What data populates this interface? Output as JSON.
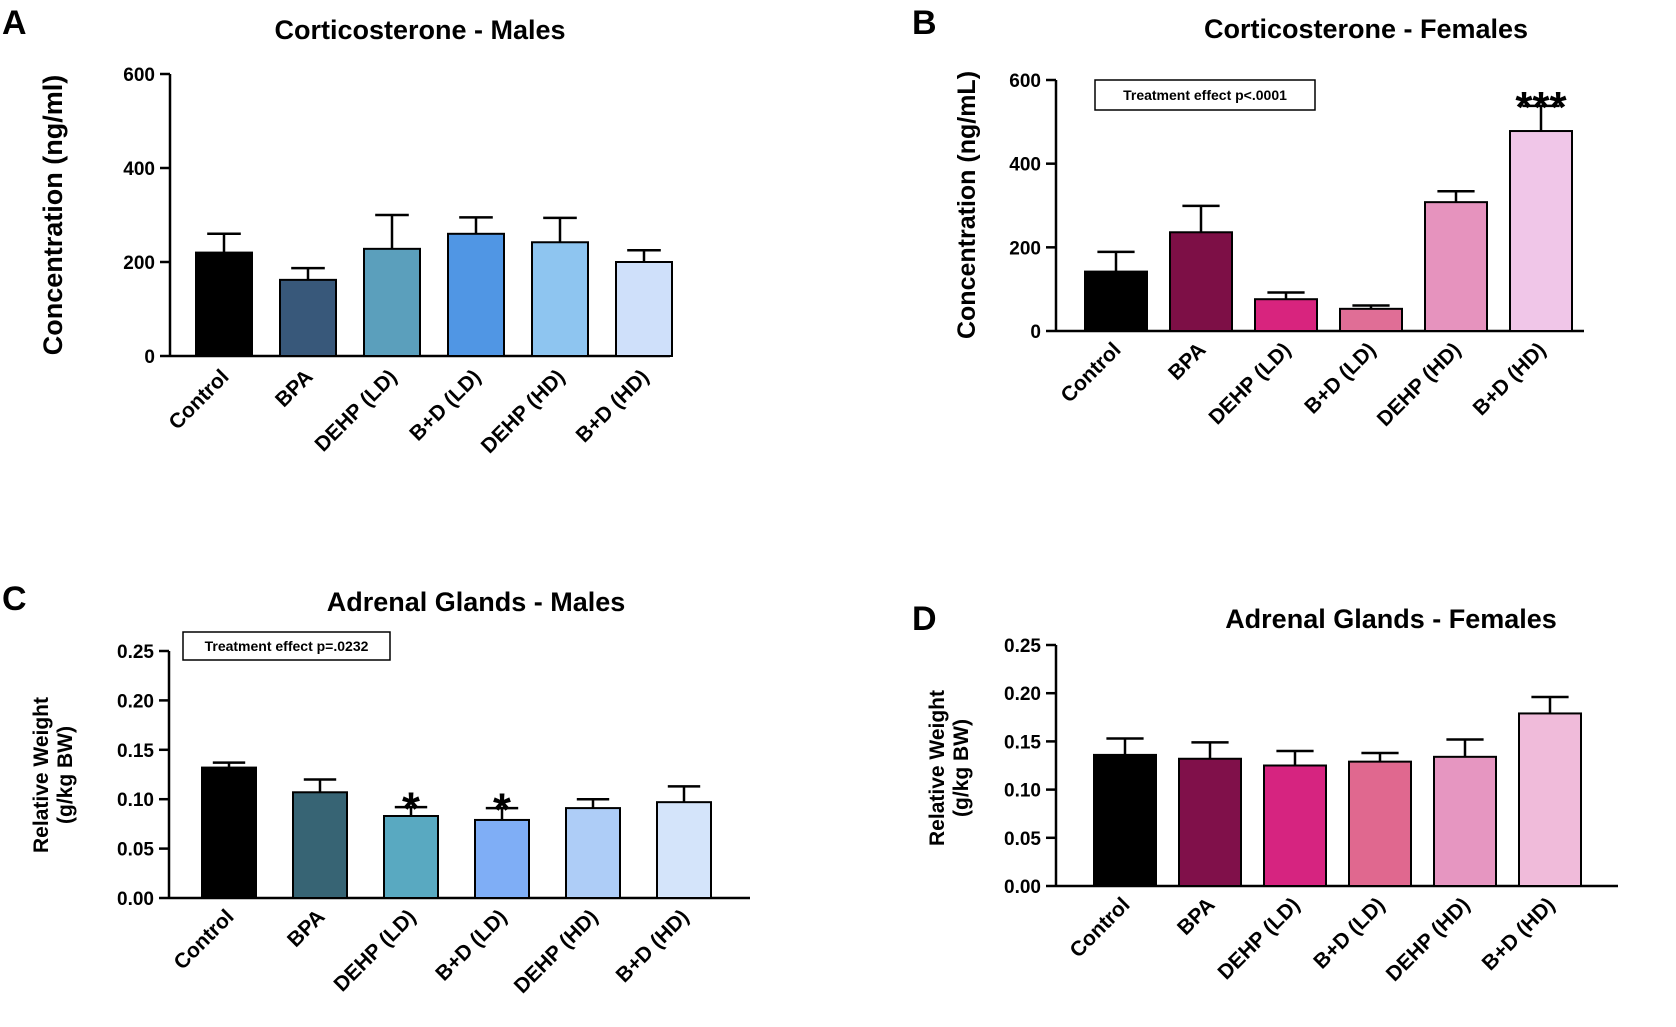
{
  "chart_data": [
    {
      "id": "A",
      "type": "bar",
      "panel_label": "A",
      "title": "Corticosterone - Males",
      "ylabel": [
        "Concentration (ng/ml)"
      ],
      "categories": [
        "Control",
        "BPA",
        "DEHP (LD)",
        "B+D (LD)",
        "DEHP (HD)",
        "B+D (HD)"
      ],
      "values": [
        220,
        162,
        228,
        260,
        242,
        200
      ],
      "errors": [
        40,
        25,
        72,
        35,
        52,
        25
      ],
      "colors": [
        "#000000",
        "#38587a",
        "#5b9fbc",
        "#5096e4",
        "#8ec5f0",
        "#cfe0fa"
      ],
      "ylim": [
        0,
        600
      ],
      "yticks": [
        "0",
        "200",
        "400",
        "600"
      ],
      "annotation": "",
      "significance": [
        "",
        "",
        "",
        "",
        "",
        ""
      ]
    },
    {
      "id": "B",
      "type": "bar",
      "panel_label": "B",
      "title": "Corticosterone - Females",
      "ylabel": [
        "Concentration (ng/mL)"
      ],
      "categories": [
        "Control",
        "BPA",
        "DEHP (LD)",
        "B+D (LD)",
        "DEHP (HD)",
        "B+D (HD)"
      ],
      "values": [
        142,
        236,
        76,
        53,
        308,
        478
      ],
      "errors": [
        47,
        63,
        16,
        8,
        26,
        60
      ],
      "colors": [
        "#000000",
        "#7d0f46",
        "#d8247e",
        "#e06e96",
        "#e693be",
        "#f0c6e8"
      ],
      "ylim": [
        0,
        600
      ],
      "yticks": [
        "0",
        "200",
        "400",
        "600"
      ],
      "annotation": "Treatment effect p<.0001",
      "significance": [
        "",
        "",
        "",
        "",
        "",
        "***"
      ]
    },
    {
      "id": "C",
      "type": "bar",
      "panel_label": "C",
      "title": "Adrenal Glands - Males",
      "ylabel": [
        "Relative Weight",
        "(g/kg BW)"
      ],
      "categories": [
        "Control",
        "BPA",
        "DEHP (LD)",
        "B+D (LD)",
        "DEHP (HD)",
        "B+D (HD)"
      ],
      "values": [
        0.132,
        0.107,
        0.083,
        0.079,
        0.091,
        0.097
      ],
      "errors": [
        0.005,
        0.013,
        0.009,
        0.012,
        0.009,
        0.016
      ],
      "colors": [
        "#000000",
        "#376474",
        "#59a9c1",
        "#7faef6",
        "#aecdf7",
        "#d4e4fa"
      ],
      "ylim": [
        0,
        0.25
      ],
      "yticks": [
        "0.00",
        "0.05",
        "0.10",
        "0.15",
        "0.20",
        "0.25"
      ],
      "annotation": "Treatment effect p=.0232",
      "significance": [
        "",
        "",
        "*",
        "*",
        "",
        ""
      ]
    },
    {
      "id": "D",
      "type": "bar",
      "panel_label": "D",
      "title": "Adrenal Glands - Females",
      "ylabel": [
        "Relative Weight",
        "(g/kg BW)"
      ],
      "categories": [
        "Control",
        "BPA",
        "DEHP (LD)",
        "B+D (LD)",
        "DEHP (HD)",
        "B+D (HD)"
      ],
      "values": [
        0.136,
        0.132,
        0.125,
        0.129,
        0.134,
        0.179
      ],
      "errors": [
        0.017,
        0.017,
        0.015,
        0.009,
        0.018,
        0.017
      ],
      "colors": [
        "#000000",
        "#80104a",
        "#d62480",
        "#e0688f",
        "#e696c1",
        "#f0bbda"
      ],
      "ylim": [
        0,
        0.25
      ],
      "yticks": [
        "0.00",
        "0.05",
        "0.10",
        "0.15",
        "0.20",
        "0.25"
      ],
      "annotation": "",
      "significance": [
        "",
        "",
        "",
        "",
        "",
        ""
      ]
    }
  ]
}
